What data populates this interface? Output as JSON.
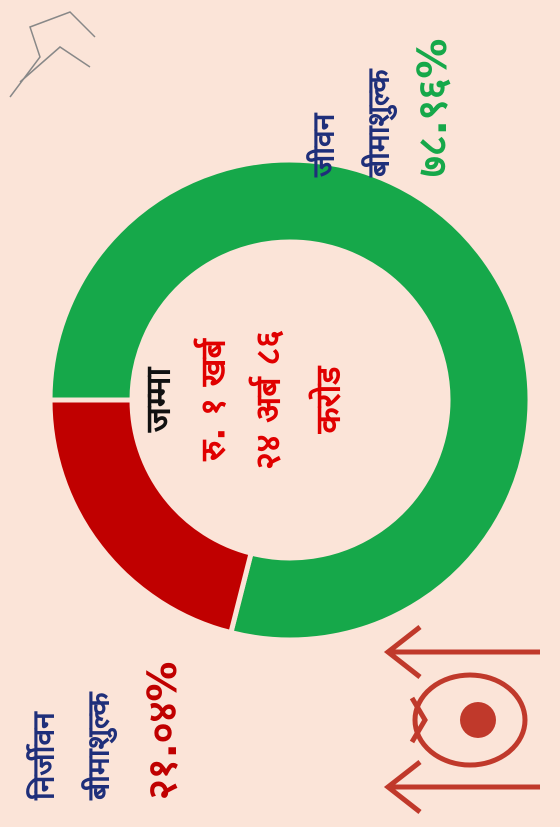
{
  "chart_data": {
    "type": "donut",
    "categories": [
      [
        "जीवन",
        "बीमाशुल्क"
      ],
      [
        "निर्जीवन",
        "बीमाशुल्क"
      ]
    ],
    "values": [
      78.96,
      21.04
    ],
    "value_labels": [
      "७८.९६%",
      "२१.०४%"
    ],
    "colors": [
      "#16a84a",
      "#c00000"
    ],
    "center_text": [
      "जम्मा",
      "रु. १ खर्ब",
      "२४ अर्ब ८६",
      "करोड"
    ]
  }
}
